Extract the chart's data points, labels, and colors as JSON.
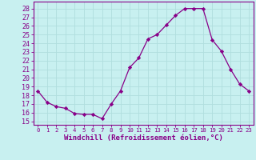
{
  "x": [
    0,
    1,
    2,
    3,
    4,
    5,
    6,
    7,
    8,
    9,
    10,
    11,
    12,
    13,
    14,
    15,
    16,
    17,
    18,
    19,
    20,
    21,
    22,
    23
  ],
  "y": [
    18.5,
    17.2,
    16.7,
    16.5,
    15.9,
    15.8,
    15.8,
    15.3,
    17.0,
    18.5,
    21.2,
    22.3,
    24.5,
    25.0,
    26.1,
    27.2,
    28.0,
    28.0,
    28.0,
    24.4,
    23.1,
    21.0,
    19.3,
    18.5
  ],
  "line_color": "#880088",
  "marker": "D",
  "marker_size": 2.2,
  "bg_color": "#c8f0f0",
  "grid_color": "#b0dede",
  "ylabel_ticks": [
    15,
    16,
    17,
    18,
    19,
    20,
    21,
    22,
    23,
    24,
    25,
    26,
    27,
    28
  ],
  "ylim": [
    14.6,
    28.8
  ],
  "xlim": [
    -0.5,
    23.5
  ],
  "xlabel": "Windchill (Refroidissement éolien,°C)",
  "xlabel_color": "#880088",
  "tick_color": "#880088",
  "axis_color": "#880088",
  "ytick_fontsize": 6.0,
  "xtick_fontsize": 5.2,
  "xlabel_fontsize": 6.5
}
